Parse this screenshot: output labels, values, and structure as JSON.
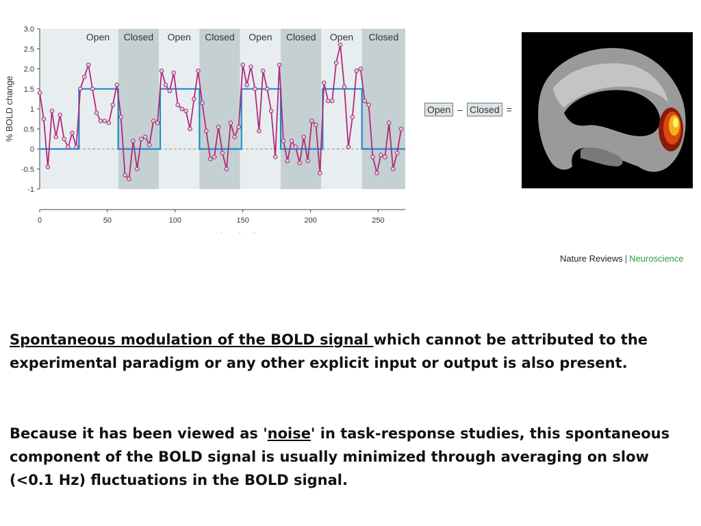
{
  "chart_data": {
    "type": "line",
    "xlabel": "Time (sec)",
    "ylabel": "% BOLD change",
    "xlim": [
      0,
      270
    ],
    "ylim": [
      -1,
      3
    ],
    "x_ticks": [
      "0",
      "50",
      "100",
      "150",
      "200",
      "250"
    ],
    "y_ticks": [
      "3.0",
      "2.5",
      "2.0",
      "1.5",
      "1",
      "0.5",
      "0",
      "-0.5",
      "-1"
    ],
    "bands": [
      {
        "label": "Open",
        "start": 0,
        "end": 28,
        "hide_label": true
      },
      {
        "label": "Open",
        "start": 28,
        "end": 58
      },
      {
        "label": "Closed",
        "start": 58,
        "end": 88
      },
      {
        "label": "Open",
        "start": 88,
        "end": 118
      },
      {
        "label": "Closed",
        "start": 118,
        "end": 148
      },
      {
        "label": "Open",
        "start": 148,
        "end": 178
      },
      {
        "label": "Closed",
        "start": 178,
        "end": 208
      },
      {
        "label": "Open",
        "start": 208,
        "end": 238
      },
      {
        "label": "Closed",
        "start": 238,
        "end": 270
      }
    ],
    "model": {
      "x": [
        0,
        29,
        29,
        58,
        58,
        89,
        89,
        118,
        118,
        149,
        149,
        178,
        178,
        209,
        209,
        238,
        238,
        270
      ],
      "y": [
        0,
        0,
        1.5,
        1.5,
        0,
        0,
        1.5,
        1.5,
        0,
        0,
        1.5,
        1.5,
        0,
        0,
        1.5,
        1.5,
        0,
        0
      ]
    },
    "signal": {
      "x": [
        0,
        3,
        6,
        9,
        12,
        15,
        18,
        21,
        24,
        27,
        30,
        33,
        36,
        39,
        42,
        45,
        48,
        51,
        54,
        57,
        60,
        63,
        66,
        69,
        72,
        75,
        78,
        81,
        84,
        87,
        90,
        93,
        96,
        99,
        102,
        105,
        108,
        111,
        114,
        117,
        120,
        123,
        126,
        129,
        132,
        135,
        138,
        141,
        144,
        147,
        150,
        153,
        156,
        159,
        162,
        165,
        168,
        171,
        174,
        177,
        180,
        183,
        186,
        189,
        192,
        195,
        198,
        201,
        204,
        207,
        210,
        213,
        216,
        219,
        222,
        225,
        228,
        231,
        234,
        237,
        240,
        243,
        246,
        249,
        252,
        255,
        258,
        261,
        264,
        267
      ],
      "y": [
        1.4,
        0.75,
        -0.45,
        0.95,
        0.3,
        0.85,
        0.25,
        0.05,
        0.4,
        0.05,
        1.5,
        1.8,
        2.1,
        1.5,
        0.9,
        0.7,
        0.7,
        0.65,
        1.1,
        1.6,
        0.8,
        -0.65,
        -0.75,
        0.2,
        -0.5,
        0.25,
        0.3,
        0.1,
        0.7,
        0.65,
        1.95,
        1.6,
        1.45,
        1.9,
        1.1,
        1.0,
        0.95,
        0.5,
        1.25,
        1.95,
        1.15,
        0.45,
        -0.25,
        -0.2,
        0.55,
        -0.1,
        -0.5,
        0.65,
        0.3,
        0.55,
        2.1,
        1.6,
        2.05,
        1.5,
        0.45,
        1.95,
        1.5,
        0.95,
        -0.2,
        2.1,
        0.2,
        -0.3,
        0.2,
        0.05,
        -0.35,
        0.3,
        -0.3,
        0.7,
        0.6,
        -0.6,
        1.65,
        1.2,
        1.2,
        2.15,
        2.6,
        1.55,
        0.05,
        0.8,
        1.95,
        2.0,
        1.2,
        1.1,
        -0.2,
        -0.6,
        -0.15,
        -0.2,
        0.65,
        -0.5,
        -0.1,
        0.5
      ]
    },
    "colors": {
      "signal": "#b0287c",
      "model": "#1f8ac8",
      "marker": "#d9d0d6",
      "band_open": "#e8eef0",
      "band_closed": "#c5d0d3"
    }
  },
  "contrast": {
    "left_box": "Open",
    "minus": "–",
    "right_box": "Closed",
    "equals": "="
  },
  "credit": {
    "journal": "Nature Reviews",
    "separator": "|",
    "section": "Neuroscience"
  },
  "text": {
    "p1_underlined": "Spontaneous modulation of the BOLD signal ",
    "p1_rest": "which cannot be attributed to the experimental paradigm or any other explicit input or output is also present.",
    "p2_before": "Because it has been viewed as '",
    "p2_underlined": "noise",
    "p2_after": "' in task-response studies, this spontaneous component of the BOLD signal is usually minimized through averaging on slow (<0.1 Hz) fluctuations in the BOLD signal."
  }
}
